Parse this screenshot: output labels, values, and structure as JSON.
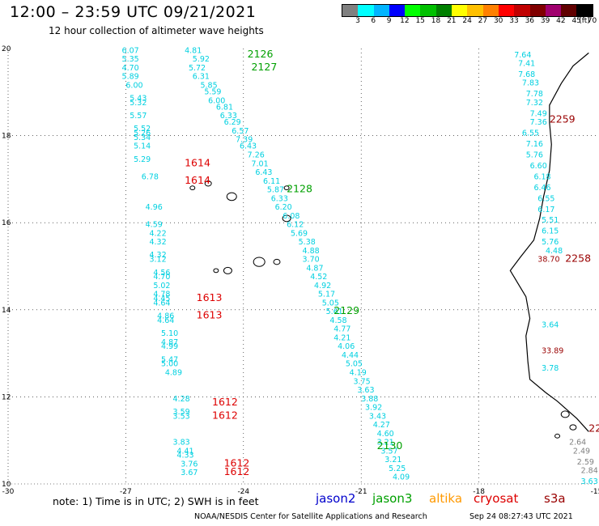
{
  "header": {
    "title": "12:00 – 23:59 UTC 09/21/2021",
    "subtitle": "12 hour collection of altimeter wave heights"
  },
  "color_scale": {
    "unit": "(ft)",
    "labels": [
      "3",
      "6",
      "9",
      "12",
      "15",
      "18",
      "21",
      "24",
      "27",
      "30",
      "33",
      "36",
      "39",
      "42",
      "45",
      "70"
    ],
    "colors": [
      "#808080",
      "#00ffff",
      "#00b4ff",
      "#0000ff",
      "#00ff00",
      "#00c000",
      "#008000",
      "#ffff00",
      "#ffc000",
      "#ff8000",
      "#ff0000",
      "#c00000",
      "#800000",
      "#a0006e",
      "#600000",
      "#000000"
    ]
  },
  "axes": {
    "lon_ticks": [
      "-30",
      "-27",
      "-24",
      "-21",
      "-18",
      "-15"
    ],
    "lat_ticks": [
      "20",
      "18",
      "16",
      "14",
      "12",
      "10"
    ]
  },
  "note": "note: 1) Time is in UTC; 2) SWH is in feet",
  "legend": [
    {
      "name": "jason2",
      "color": "#0000cc"
    },
    {
      "name": "jason3",
      "color": "#00a000"
    },
    {
      "name": "altika",
      "color": "#ff9900"
    },
    {
      "name": "cryosat",
      "color": "#dd0000"
    },
    {
      "name": "s3a",
      "color": "#990000"
    }
  ],
  "footer": "NOAA/NESDIS Center for Satellite Applications and Research",
  "timestamp": "Sep 24 08:27:43 UTC 2021",
  "track_labels": [
    {
      "text": "2126",
      "lon": -23.9,
      "lat": 19.8,
      "color": "#00a000"
    },
    {
      "text": "2127",
      "lon": -23.8,
      "lat": 19.5,
      "color": "#00a000"
    },
    {
      "text": "2128",
      "lon": -22.9,
      "lat": 16.7,
      "color": "#00a000"
    },
    {
      "text": "2129",
      "lon": -21.7,
      "lat": 13.9,
      "color": "#00a000"
    },
    {
      "text": "2130",
      "lon": -20.6,
      "lat": 10.8,
      "color": "#00a000"
    },
    {
      "text": "1614",
      "lon": -25.5,
      "lat": 17.3,
      "color": "#dd0000"
    },
    {
      "text": "1614",
      "lon": -25.5,
      "lat": 16.9,
      "color": "#dd0000"
    },
    {
      "text": "1613",
      "lon": -25.2,
      "lat": 14.2,
      "color": "#dd0000"
    },
    {
      "text": "1613",
      "lon": -25.2,
      "lat": 13.8,
      "color": "#dd0000"
    },
    {
      "text": "1612",
      "lon": -24.8,
      "lat": 11.8,
      "color": "#dd0000"
    },
    {
      "text": "1612",
      "lon": -24.8,
      "lat": 11.5,
      "color": "#dd0000"
    },
    {
      "text": "1612",
      "lon": -24.5,
      "lat": 10.4,
      "color": "#dd0000"
    },
    {
      "text": "1612",
      "lon": -24.5,
      "lat": 10.2,
      "color": "#dd0000"
    },
    {
      "text": "2259",
      "lon": -16.2,
      "lat": 18.3,
      "color": "#990000"
    },
    {
      "text": "2258",
      "lon": -15.8,
      "lat": 15.1,
      "color": "#990000"
    },
    {
      "text": "22",
      "lon": -15.2,
      "lat": 11.2,
      "color": "#990000"
    }
  ],
  "wave_heights": [
    {
      "v": "6.07",
      "lon": -27.1,
      "lat": 19.9,
      "c": "#00d0e0"
    },
    {
      "v": "5.35",
      "lon": -27.1,
      "lat": 19.7,
      "c": "#00d0e0"
    },
    {
      "v": "4.70",
      "lon": -27.1,
      "lat": 19.5,
      "c": "#00d0e0"
    },
    {
      "v": "5.89",
      "lon": -27.1,
      "lat": 19.3,
      "c": "#00d0e0"
    },
    {
      "v": "6.00",
      "lon": -27.0,
      "lat": 19.1,
      "c": "#00d0e0"
    },
    {
      "v": "5.43",
      "lon": -26.9,
      "lat": 18.8,
      "c": "#00d0e0"
    },
    {
      "v": "5.32",
      "lon": -26.9,
      "lat": 18.7,
      "c": "#00d0e0"
    },
    {
      "v": "5.57",
      "lon": -26.9,
      "lat": 18.4,
      "c": "#00d0e0"
    },
    {
      "v": "5.52",
      "lon": -26.8,
      "lat": 18.1,
      "c": "#00d0e0"
    },
    {
      "v": "5.26",
      "lon": -26.8,
      "lat": 18.0,
      "c": "#00d0e0"
    },
    {
      "v": "5.34",
      "lon": -26.8,
      "lat": 17.9,
      "c": "#00d0e0"
    },
    {
      "v": "5.14",
      "lon": -26.8,
      "lat": 17.7,
      "c": "#00d0e0"
    },
    {
      "v": "5.29",
      "lon": -26.8,
      "lat": 17.4,
      "c": "#00d0e0"
    },
    {
      "v": "6.78",
      "lon": -26.6,
      "lat": 17.0,
      "c": "#00d0e0"
    },
    {
      "v": "4.96",
      "lon": -26.5,
      "lat": 16.3,
      "c": "#00d0e0"
    },
    {
      "v": "4.59",
      "lon": -26.5,
      "lat": 15.9,
      "c": "#00d0e0"
    },
    {
      "v": "4.22",
      "lon": -26.4,
      "lat": 15.7,
      "c": "#00d0e0"
    },
    {
      "v": "4.32",
      "lon": -26.4,
      "lat": 15.5,
      "c": "#00d0e0"
    },
    {
      "v": "4.32",
      "lon": -26.4,
      "lat": 15.2,
      "c": "#00d0e0"
    },
    {
      "v": "3.12",
      "lon": -26.4,
      "lat": 15.1,
      "c": "#00d0e0"
    },
    {
      "v": "4.56",
      "lon": -26.3,
      "lat": 14.8,
      "c": "#00d0e0"
    },
    {
      "v": "4.70",
      "lon": -26.3,
      "lat": 14.7,
      "c": "#00d0e0"
    },
    {
      "v": "5.02",
      "lon": -26.3,
      "lat": 14.5,
      "c": "#00d0e0"
    },
    {
      "v": "4.78",
      "lon": -26.3,
      "lat": 14.3,
      "c": "#00d0e0"
    },
    {
      "v": "4.45",
      "lon": -26.3,
      "lat": 14.2,
      "c": "#00d0e0"
    },
    {
      "v": "4.64",
      "lon": -26.3,
      "lat": 14.1,
      "c": "#00d0e0"
    },
    {
      "v": "4.86",
      "lon": -26.2,
      "lat": 13.8,
      "c": "#00d0e0"
    },
    {
      "v": "4.64",
      "lon": -26.2,
      "lat": 13.7,
      "c": "#00d0e0"
    },
    {
      "v": "5.10",
      "lon": -26.1,
      "lat": 13.4,
      "c": "#00d0e0"
    },
    {
      "v": "4.87",
      "lon": -26.1,
      "lat": 13.2,
      "c": "#00d0e0"
    },
    {
      "v": "4.99",
      "lon": -26.1,
      "lat": 13.1,
      "c": "#00d0e0"
    },
    {
      "v": "5.47",
      "lon": -26.1,
      "lat": 12.8,
      "c": "#00d0e0"
    },
    {
      "v": "5.00",
      "lon": -26.1,
      "lat": 12.7,
      "c": "#00d0e0"
    },
    {
      "v": "4.89",
      "lon": -26.0,
      "lat": 12.5,
      "c": "#00d0e0"
    },
    {
      "v": "4.28",
      "lon": -25.8,
      "lat": 11.9,
      "c": "#00d0e0"
    },
    {
      "v": "3.59",
      "lon": -25.8,
      "lat": 11.6,
      "c": "#00d0e0"
    },
    {
      "v": "3.53",
      "lon": -25.8,
      "lat": 11.5,
      "c": "#00d0e0"
    },
    {
      "v": "3.83",
      "lon": -25.8,
      "lat": 10.9,
      "c": "#00d0e0"
    },
    {
      "v": "4.41",
      "lon": -25.7,
      "lat": 10.7,
      "c": "#00d0e0"
    },
    {
      "v": "4.33",
      "lon": -25.7,
      "lat": 10.6,
      "c": "#00d0e0"
    },
    {
      "v": "3.76",
      "lon": -25.6,
      "lat": 10.4,
      "c": "#00d0e0"
    },
    {
      "v": "3.67",
      "lon": -25.6,
      "lat": 10.2,
      "c": "#00d0e0"
    },
    {
      "v": "4.81",
      "lon": -25.5,
      "lat": 19.9,
      "c": "#00d0e0"
    },
    {
      "v": "5.92",
      "lon": -25.3,
      "lat": 19.7,
      "c": "#00d0e0"
    },
    {
      "v": "5.72",
      "lon": -25.4,
      "lat": 19.5,
      "c": "#00d0e0"
    },
    {
      "v": "6.31",
      "lon": -25.3,
      "lat": 19.3,
      "c": "#00d0e0"
    },
    {
      "v": "5.85",
      "lon": -25.1,
      "lat": 19.1,
      "c": "#00d0e0"
    },
    {
      "v": "5.59",
      "lon": -25.0,
      "lat": 18.95,
      "c": "#00d0e0"
    },
    {
      "v": "6.00",
      "lon": -24.9,
      "lat": 18.75,
      "c": "#00d0e0"
    },
    {
      "v": "6.81",
      "lon": -24.7,
      "lat": 18.6,
      "c": "#00d0e0"
    },
    {
      "v": "6.33",
      "lon": -24.6,
      "lat": 18.4,
      "c": "#00d0e0"
    },
    {
      "v": "6.29",
      "lon": -24.5,
      "lat": 18.25,
      "c": "#00d0e0"
    },
    {
      "v": "6.57",
      "lon": -24.3,
      "lat": 18.05,
      "c": "#00d0e0"
    },
    {
      "v": "7.39",
      "lon": -24.2,
      "lat": 17.85,
      "c": "#00d0e0"
    },
    {
      "v": "6.43",
      "lon": -24.1,
      "lat": 17.7,
      "c": "#00d0e0"
    },
    {
      "v": "7.26",
      "lon": -23.9,
      "lat": 17.5,
      "c": "#00d0e0"
    },
    {
      "v": "7.01",
      "lon": -23.8,
      "lat": 17.3,
      "c": "#00d0e0"
    },
    {
      "v": "6.43",
      "lon": -23.7,
      "lat": 17.1,
      "c": "#00d0e0"
    },
    {
      "v": "6.11",
      "lon": -23.5,
      "lat": 16.9,
      "c": "#00d0e0"
    },
    {
      "v": "5.87",
      "lon": -23.4,
      "lat": 16.7,
      "c": "#00d0e0"
    },
    {
      "v": "6.33",
      "lon": -23.3,
      "lat": 16.5,
      "c": "#00d0e0"
    },
    {
      "v": "6.20",
      "lon": -23.2,
      "lat": 16.3,
      "c": "#00d0e0"
    },
    {
      "v": "6.08",
      "lon": -23.0,
      "lat": 16.1,
      "c": "#00d0e0"
    },
    {
      "v": "6.12",
      "lon": -22.9,
      "lat": 15.9,
      "c": "#00d0e0"
    },
    {
      "v": "5.69",
      "lon": -22.8,
      "lat": 15.7,
      "c": "#00d0e0"
    },
    {
      "v": "5.38",
      "lon": -22.6,
      "lat": 15.5,
      "c": "#00d0e0"
    },
    {
      "v": "4.88",
      "lon": -22.5,
      "lat": 15.3,
      "c": "#00d0e0"
    },
    {
      "v": "3.70",
      "lon": -22.5,
      "lat": 15.1,
      "c": "#00d0e0"
    },
    {
      "v": "4.87",
      "lon": -22.4,
      "lat": 14.9,
      "c": "#00d0e0"
    },
    {
      "v": "4.52",
      "lon": -22.3,
      "lat": 14.7,
      "c": "#00d0e0"
    },
    {
      "v": "4.92",
      "lon": -22.2,
      "lat": 14.5,
      "c": "#00d0e0"
    },
    {
      "v": "5.17",
      "lon": -22.1,
      "lat": 14.3,
      "c": "#00d0e0"
    },
    {
      "v": "5.05",
      "lon": -22.0,
      "lat": 14.1,
      "c": "#00d0e0"
    },
    {
      "v": "5.61",
      "lon": -21.9,
      "lat": 13.9,
      "c": "#00d0e0"
    },
    {
      "v": "4.58",
      "lon": -21.8,
      "lat": 13.7,
      "c": "#00d0e0"
    },
    {
      "v": "4.77",
      "lon": -21.7,
      "lat": 13.5,
      "c": "#00d0e0"
    },
    {
      "v": "4.21",
      "lon": -21.7,
      "lat": 13.3,
      "c": "#00d0e0"
    },
    {
      "v": "4.06",
      "lon": -21.6,
      "lat": 13.1,
      "c": "#00d0e0"
    },
    {
      "v": "4.44",
      "lon": -21.5,
      "lat": 12.9,
      "c": "#00d0e0"
    },
    {
      "v": "5.05",
      "lon": -21.4,
      "lat": 12.7,
      "c": "#00d0e0"
    },
    {
      "v": "4.19",
      "lon": -21.3,
      "lat": 12.5,
      "c": "#00d0e0"
    },
    {
      "v": "3.75",
      "lon": -21.2,
      "lat": 12.3,
      "c": "#00d0e0"
    },
    {
      "v": "3.63",
      "lon": -21.1,
      "lat": 12.1,
      "c": "#00d0e0"
    },
    {
      "v": "3.88",
      "lon": -21.0,
      "lat": 11.9,
      "c": "#00d0e0"
    },
    {
      "v": "3.92",
      "lon": -20.9,
      "lat": 11.7,
      "c": "#00d0e0"
    },
    {
      "v": "3.43",
      "lon": -20.8,
      "lat": 11.5,
      "c": "#00d0e0"
    },
    {
      "v": "4.27",
      "lon": -20.7,
      "lat": 11.3,
      "c": "#00d0e0"
    },
    {
      "v": "4.60",
      "lon": -20.6,
      "lat": 11.1,
      "c": "#00d0e0"
    },
    {
      "v": "3.21",
      "lon": -20.6,
      "lat": 10.9,
      "c": "#00d0e0"
    },
    {
      "v": "3.57",
      "lon": -20.5,
      "lat": 10.7,
      "c": "#00d0e0"
    },
    {
      "v": "3.21",
      "lon": -20.4,
      "lat": 10.5,
      "c": "#00d0e0"
    },
    {
      "v": "5.25",
      "lon": -20.3,
      "lat": 10.3,
      "c": "#00d0e0"
    },
    {
      "v": "4.09",
      "lon": -20.2,
      "lat": 10.1,
      "c": "#00d0e0"
    },
    {
      "v": "7.64",
      "lon": -17.1,
      "lat": 19.8,
      "c": "#00d0e0"
    },
    {
      "v": "7.41",
      "lon": -17.0,
      "lat": 19.6,
      "c": "#00d0e0"
    },
    {
      "v": "7.68",
      "lon": -17.0,
      "lat": 19.35,
      "c": "#00d0e0"
    },
    {
      "v": "7.83",
      "lon": -16.9,
      "lat": 19.15,
      "c": "#00d0e0"
    },
    {
      "v": "7.78",
      "lon": -16.8,
      "lat": 18.9,
      "c": "#00d0e0"
    },
    {
      "v": "7.32",
      "lon": -16.8,
      "lat": 18.7,
      "c": "#00d0e0"
    },
    {
      "v": "7.49",
      "lon": -16.7,
      "lat": 18.45,
      "c": "#00d0e0"
    },
    {
      "v": "7.36",
      "lon": -16.7,
      "lat": 18.25,
      "c": "#00d0e0"
    },
    {
      "v": "6.55",
      "lon": -16.9,
      "lat": 18.0,
      "c": "#00d0e0"
    },
    {
      "v": "7.16",
      "lon": -16.8,
      "lat": 17.75,
      "c": "#00d0e0"
    },
    {
      "v": "5.76",
      "lon": -16.8,
      "lat": 17.5,
      "c": "#00d0e0"
    },
    {
      "v": "6.60",
      "lon": -16.7,
      "lat": 17.25,
      "c": "#00d0e0"
    },
    {
      "v": "6.18",
      "lon": -16.6,
      "lat": 17.0,
      "c": "#00d0e0"
    },
    {
      "v": "6.46",
      "lon": -16.6,
      "lat": 16.75,
      "c": "#00d0e0"
    },
    {
      "v": "6.55",
      "lon": -16.5,
      "lat": 16.5,
      "c": "#00d0e0"
    },
    {
      "v": "6.17",
      "lon": -16.5,
      "lat": 16.25,
      "c": "#00d0e0"
    },
    {
      "v": "5.51",
      "lon": -16.4,
      "lat": 16.0,
      "c": "#00d0e0"
    },
    {
      "v": "6.15",
      "lon": -16.4,
      "lat": 15.75,
      "c": "#00d0e0"
    },
    {
      "v": "5.76",
      "lon": -16.4,
      "lat": 15.5,
      "c": "#00d0e0"
    },
    {
      "v": "4.48",
      "lon": -16.3,
      "lat": 15.3,
      "c": "#00d0e0"
    },
    {
      "v": "38.70",
      "lon": -16.5,
      "lat": 15.1,
      "c": "#990000"
    },
    {
      "v": "3.64",
      "lon": -16.4,
      "lat": 13.6,
      "c": "#00d0e0"
    },
    {
      "v": "33.89",
      "lon": -16.4,
      "lat": 13.0,
      "c": "#990000"
    },
    {
      "v": "3.78",
      "lon": -16.4,
      "lat": 12.6,
      "c": "#00d0e0"
    },
    {
      "v": "2.64",
      "lon": -15.7,
      "lat": 10.9,
      "c": "#808080"
    },
    {
      "v": "2.49",
      "lon": -15.6,
      "lat": 10.7,
      "c": "#808080"
    },
    {
      "v": "2.59",
      "lon": -15.5,
      "lat": 10.45,
      "c": "#808080"
    },
    {
      "v": "2.84",
      "lon": -15.4,
      "lat": 10.25,
      "c": "#808080"
    },
    {
      "v": "3.63",
      "lon": -15.4,
      "lat": 10.0,
      "c": "#00d0e0"
    }
  ]
}
